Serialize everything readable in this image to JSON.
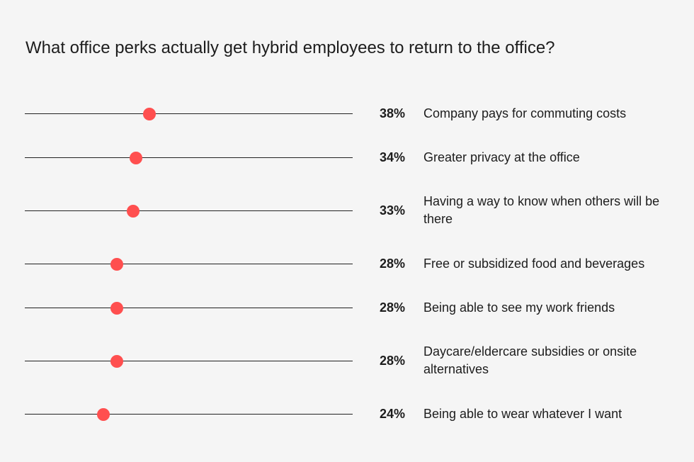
{
  "title": "What office perks actually get hybrid employees to return to the office?",
  "colors": {
    "background": "#f5f5f5",
    "dot": "#ff4f4f",
    "track": "#222222",
    "text": "#1d1d1d"
  },
  "chart_data": {
    "type": "dot",
    "title": "What office perks actually get hybrid employees to return to the office?",
    "unit": "%",
    "xlim": [
      0,
      100
    ],
    "grid": false,
    "categories": [
      "Company pays for commuting costs",
      "Greater privacy at the office",
      "Having a way to know when others will be there",
      "Free or subsidized food and beverages",
      "Being able to see my work friends",
      "Daycare/eldercare subsidies or onsite alternatives",
      "Being able to wear whatever I want"
    ],
    "values": [
      38,
      34,
      33,
      28,
      28,
      28,
      24
    ],
    "value_labels": [
      "38%",
      "34%",
      "33%",
      "28%",
      "28%",
      "28%",
      "24%"
    ]
  }
}
